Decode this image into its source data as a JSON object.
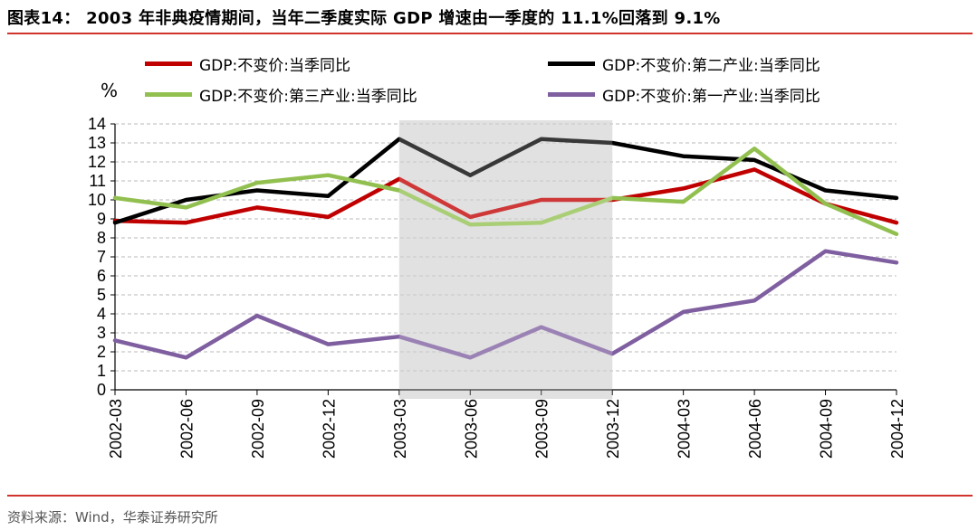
{
  "figure": {
    "title": "图表14： 2003 年非典疫情期间，当年二季度实际 GDP 增速由一季度的 11.1%回落到 9.1%",
    "source": "资料来源：Wind，华泰证券研究所"
  },
  "colors": {
    "accent_rule": "#d0342c",
    "shade": "#d9d9d9"
  },
  "chart_data": {
    "type": "line",
    "unit_label": "%",
    "categories": [
      "2002-03",
      "2002-06",
      "2002-09",
      "2002-12",
      "2003-03",
      "2003-06",
      "2003-09",
      "2003-12",
      "2004-03",
      "2004-06",
      "2004-09",
      "2004-12"
    ],
    "ylim": [
      0,
      14
    ],
    "yticks": [
      "0",
      "1",
      "2",
      "3",
      "4",
      "5",
      "6",
      "7",
      "8",
      "9",
      "10",
      "11",
      "12",
      "13",
      "14"
    ],
    "grid": true,
    "shaded_range": [
      "2003-03",
      "2003-12"
    ],
    "legend_position": "top",
    "series": [
      {
        "name": "GDP:不变价:当季同比",
        "color": "#c00000",
        "values": [
          8.9,
          8.8,
          9.6,
          9.1,
          11.1,
          9.1,
          10.0,
          10.0,
          10.6,
          11.6,
          9.8,
          8.8
        ]
      },
      {
        "name": "GDP:不变价:第二产业:当季同比",
        "color": "#000000",
        "values": [
          8.8,
          10.0,
          10.5,
          10.2,
          13.2,
          11.3,
          13.2,
          13.0,
          12.3,
          12.1,
          10.5,
          10.1
        ]
      },
      {
        "name": "GDP:不变价:第三产业:当季同比",
        "color": "#92c050",
        "values": [
          10.1,
          9.6,
          10.9,
          11.3,
          10.5,
          8.7,
          8.8,
          10.1,
          9.9,
          12.7,
          9.8,
          8.2
        ]
      },
      {
        "name": "GDP:不变价:第一产业:当季同比",
        "color": "#7f5fa0",
        "values": [
          2.6,
          1.7,
          3.9,
          2.4,
          2.8,
          1.7,
          3.3,
          1.9,
          4.1,
          4.7,
          7.3,
          6.7
        ]
      }
    ]
  }
}
